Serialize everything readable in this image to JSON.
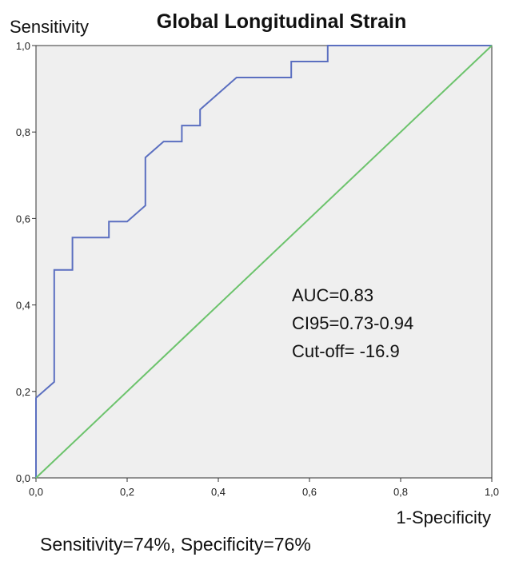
{
  "chart_data": {
    "type": "line",
    "title": "Global Longitudinal Strain",
    "ylabel": "Sensitivity",
    "xlabel": "1-Specificity",
    "xlim": [
      0,
      1
    ],
    "ylim": [
      0,
      1
    ],
    "x_ticks": [
      "0,0",
      "0,2",
      "0,4",
      "0,6",
      "0,8",
      "1,0"
    ],
    "y_ticks": [
      "0,0",
      "0,2",
      "0,4",
      "0,6",
      "0,8",
      "1,0"
    ],
    "grid": false,
    "series": [
      {
        "color": "#5b6fc0",
        "points": [
          [
            0.0,
            0.0
          ],
          [
            0.0,
            0.185
          ],
          [
            0.04,
            0.222
          ],
          [
            0.04,
            0.481
          ],
          [
            0.08,
            0.481
          ],
          [
            0.08,
            0.556
          ],
          [
            0.16,
            0.556
          ],
          [
            0.16,
            0.593
          ],
          [
            0.2,
            0.593
          ],
          [
            0.24,
            0.63
          ],
          [
            0.24,
            0.741
          ],
          [
            0.28,
            0.778
          ],
          [
            0.32,
            0.778
          ],
          [
            0.32,
            0.815
          ],
          [
            0.36,
            0.815
          ],
          [
            0.36,
            0.852
          ],
          [
            0.44,
            0.926
          ],
          [
            0.56,
            0.926
          ],
          [
            0.56,
            0.963
          ],
          [
            0.64,
            0.963
          ],
          [
            0.64,
            1.0
          ],
          [
            1.0,
            1.0
          ]
        ]
      },
      {
        "color": "#6cc36c",
        "points": [
          [
            0,
            0
          ],
          [
            1,
            1
          ]
        ]
      }
    ],
    "annotations": [
      "AUC=0.83",
      "CI95=0.73-0.94",
      "Cut-off= -16.9"
    ],
    "footer": "Sensitivity=74%, Specificity=76%"
  }
}
